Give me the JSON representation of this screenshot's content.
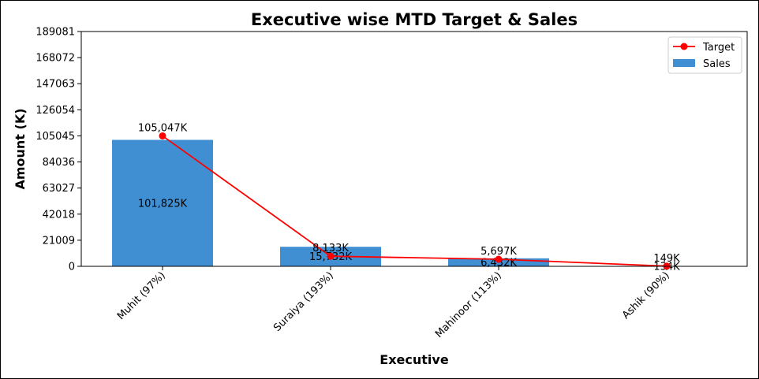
{
  "chart_data": {
    "type": "bar",
    "title": "Executive wise MTD Target & Sales",
    "xlabel": "Executive",
    "ylabel": "Amount (K)",
    "categories": [
      "Muhit (97%)",
      "Suraiya (193%)",
      "Mahinoor (113%)",
      "Ashik (90%)"
    ],
    "yticks": [
      0,
      21009,
      42018,
      63027,
      84036,
      105045,
      126054,
      147063,
      168072,
      189081
    ],
    "ylim": [
      0,
      189081
    ],
    "legend_position": "top-right",
    "series": [
      {
        "name": "Sales",
        "kind": "bar",
        "color": "#3f8fd2",
        "values": [
          101825,
          15732,
          6432,
          134
        ],
        "labels": [
          "101,825K",
          "15,732K",
          "6,432K",
          "134K"
        ]
      },
      {
        "name": "Target",
        "kind": "line",
        "color": "#ff0000",
        "values": [
          105047,
          8133,
          5697,
          149
        ],
        "labels": [
          "105,047K",
          "8,133K",
          "5,697K",
          "149K"
        ]
      }
    ]
  }
}
